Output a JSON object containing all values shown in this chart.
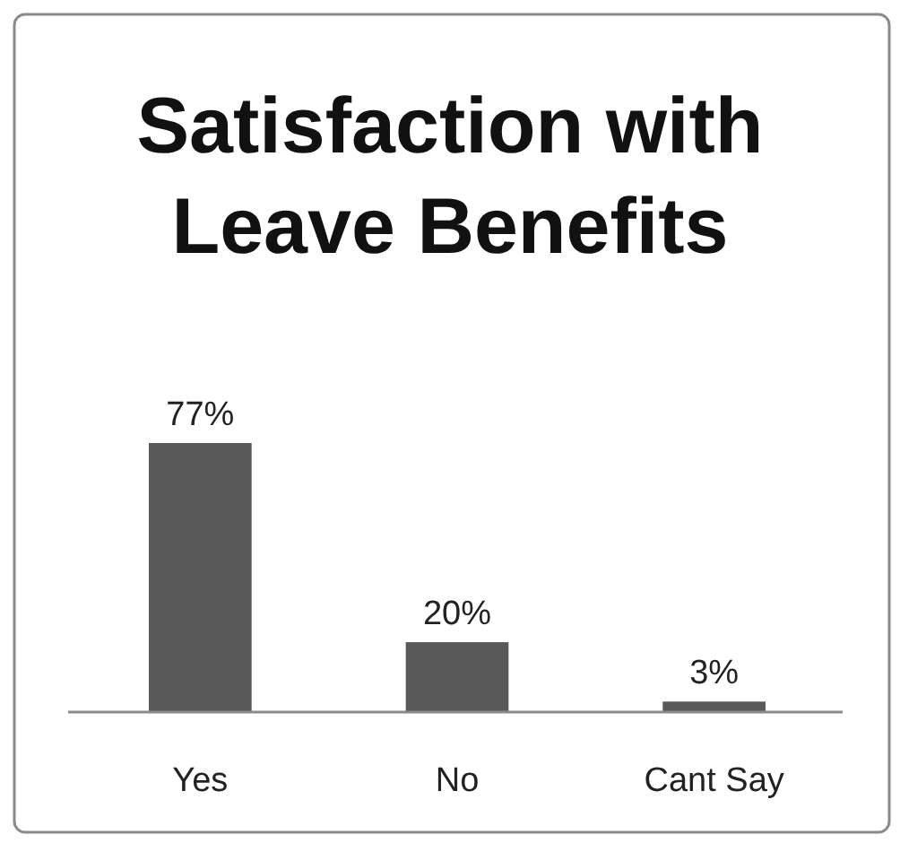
{
  "chart_data": {
    "type": "bar",
    "title": "Satisfaction with Leave Benefits",
    "categories": [
      "Yes",
      "No",
      "Cant Say"
    ],
    "values": [
      77,
      20,
      3
    ],
    "value_labels": [
      "77%",
      "20%",
      "3%"
    ],
    "color": "#595959"
  }
}
